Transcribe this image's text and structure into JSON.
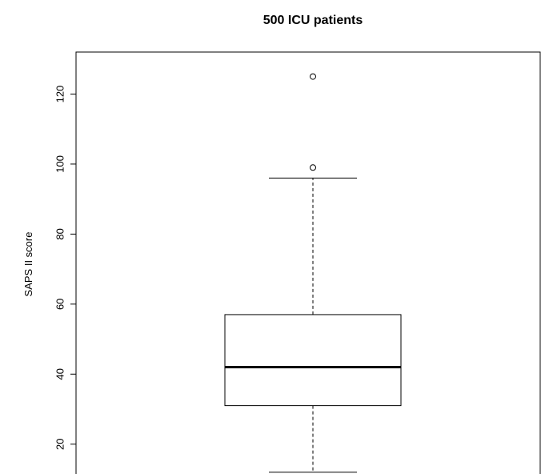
{
  "chart_data": {
    "type": "boxplot",
    "title": "500 ICU patients",
    "xlabel": "",
    "ylabel": "SAPS II score",
    "ylim": [
      8.5,
      132
    ],
    "yticks": [
      20,
      40,
      60,
      80,
      100,
      120
    ],
    "grid": false,
    "box": {
      "whisker_low": 12,
      "q1": 31,
      "median": 42,
      "q3": 57,
      "whisker_high": 96,
      "outliers": [
        99,
        125
      ]
    }
  }
}
